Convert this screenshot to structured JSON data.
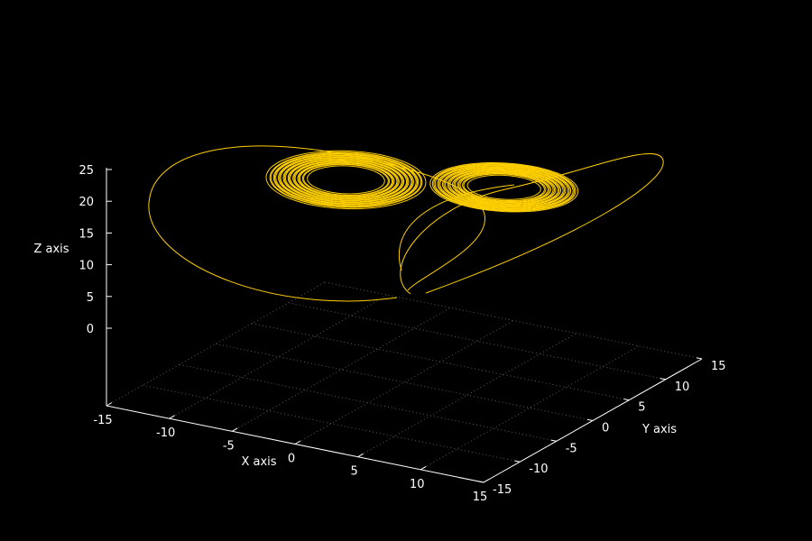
{
  "chart_data": {
    "type": "line",
    "plot_kind": "3d-parametric-curve",
    "xlabel": "X axis",
    "ylabel": "Y axis",
    "zlabel": "Z axis",
    "xlim": [
      -15,
      15
    ],
    "ylim": [
      -15,
      15
    ],
    "zlim": [
      0,
      25
    ],
    "x_ticks": [
      "-15",
      "-10",
      "-5",
      "0",
      "5",
      "10",
      "15"
    ],
    "y_ticks": [
      "-15",
      "-10",
      "-5",
      "0",
      "5",
      "10",
      "15"
    ],
    "z_ticks": [
      "0",
      "5",
      "10",
      "15",
      "20",
      "25"
    ],
    "grid": true,
    "legend": "none",
    "colors": {
      "background": "#000000",
      "curve": "#ffd000",
      "axes": "#ffffff",
      "grid": "#5a5a5a"
    },
    "series": [
      {
        "loops": [
          {
            "lobe": "left",
            "center": [
              -5.5,
              1.5,
              16.5
            ],
            "rx": 9.2,
            "ry": 3.6,
            "rings": 24
          },
          {
            "lobe": "right",
            "center": [
              6.5,
              2.5,
              19.5
            ],
            "rx": 8.8,
            "ry": 3.0,
            "rings": 22
          }
        ]
      }
    ]
  }
}
